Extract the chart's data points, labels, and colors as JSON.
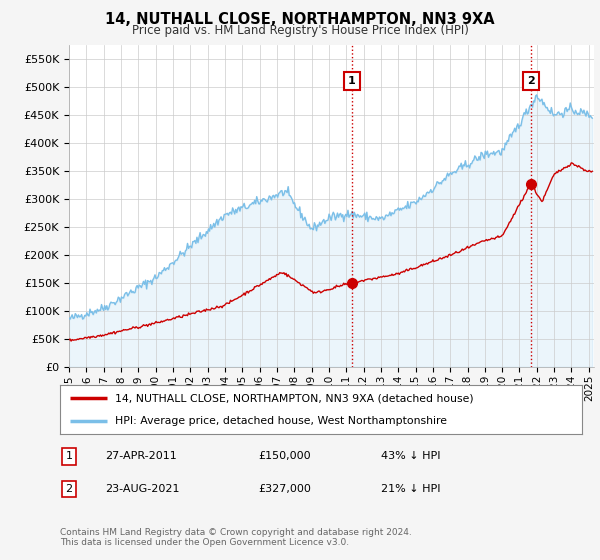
{
  "title": "14, NUTHALL CLOSE, NORTHAMPTON, NN3 9XA",
  "subtitle": "Price paid vs. HM Land Registry's House Price Index (HPI)",
  "ylabel_ticks": [
    "£0",
    "£50K",
    "£100K",
    "£150K",
    "£200K",
    "£250K",
    "£300K",
    "£350K",
    "£400K",
    "£450K",
    "£500K",
    "£550K"
  ],
  "ylim": [
    0,
    575000
  ],
  "ytick_vals": [
    0,
    50000,
    100000,
    150000,
    200000,
    250000,
    300000,
    350000,
    400000,
    450000,
    500000,
    550000
  ],
  "hpi_color": "#7bbfe8",
  "price_color": "#cc0000",
  "background_color": "#f5f5f5",
  "plot_bg": "#ffffff",
  "grid_color": "#cccccc",
  "transaction1_x": 2011.32,
  "transaction1_y": 150000,
  "transaction2_x": 2021.65,
  "transaction2_y": 327000,
  "footer": "Contains HM Land Registry data © Crown copyright and database right 2024.\nThis data is licensed under the Open Government Licence v3.0.",
  "legend_label_red": "14, NUTHALL CLOSE, NORTHAMPTON, NN3 9XA (detached house)",
  "legend_label_blue": "HPI: Average price, detached house, West Northamptonshire",
  "table_rows": [
    [
      "1",
      "27-APR-2011",
      "£150,000",
      "43% ↓ HPI"
    ],
    [
      "2",
      "23-AUG-2021",
      "£327,000",
      "21% ↓ HPI"
    ]
  ],
  "xlim_left": 1995,
  "xlim_right": 2025.3
}
